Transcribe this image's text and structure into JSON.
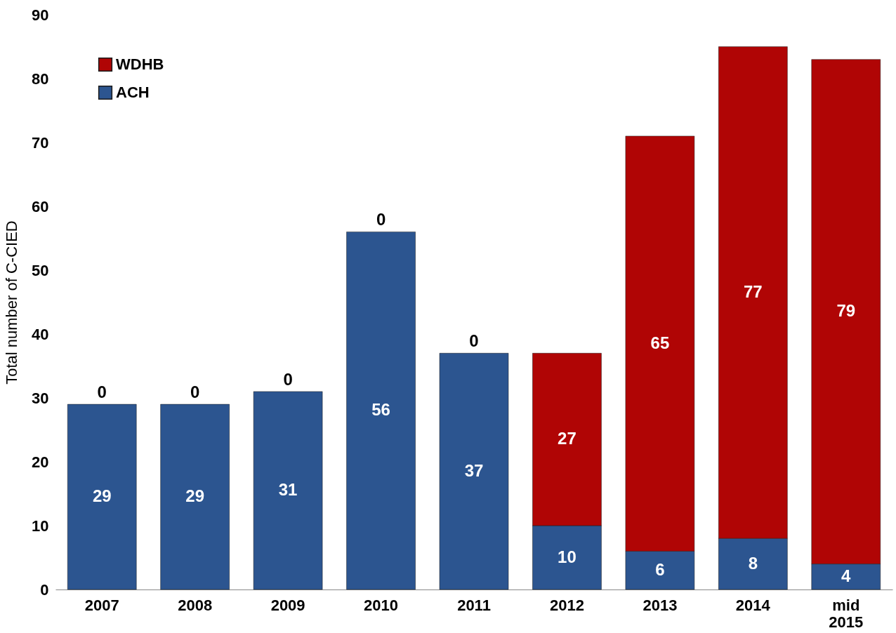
{
  "chart_data": {
    "type": "bar",
    "stacked": true,
    "ylabel": "Total number of C-CIED",
    "categories": [
      "2007",
      "2008",
      "2009",
      "2010",
      "2011",
      "2012",
      "2013",
      "2014",
      "mid 2015"
    ],
    "series": [
      {
        "name": "ACH",
        "color": "#2c5590",
        "values": [
          29,
          29,
          31,
          56,
          37,
          10,
          6,
          8,
          4
        ]
      },
      {
        "name": "WDHB",
        "color": "#b00505",
        "values": [
          0,
          0,
          0,
          0,
          0,
          27,
          65,
          77,
          79
        ]
      }
    ],
    "ylim": [
      0,
      90
    ],
    "yticks": [
      0,
      10,
      20,
      30,
      40,
      50,
      60,
      70,
      80,
      90
    ],
    "grid": false,
    "legend": "top left",
    "data_labels": true
  }
}
